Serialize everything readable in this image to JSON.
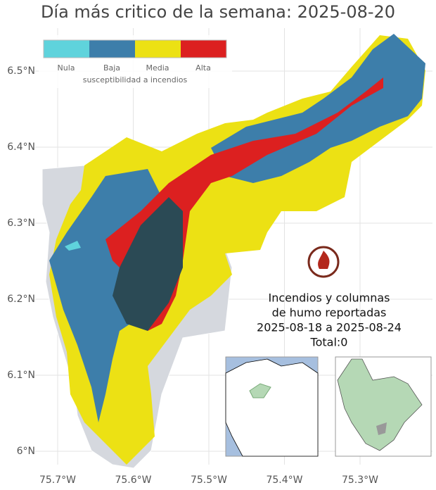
{
  "title": "Día más critico de la semana: 2025-08-20",
  "legend": {
    "title": "susceptibilidad a incendios",
    "items": [
      {
        "label": "Nula",
        "color": "#5fd3dc"
      },
      {
        "label": "Baja",
        "color": "#3d7eaa"
      },
      {
        "label": "Media",
        "color": "#ece114"
      },
      {
        "label": "Alta",
        "color": "#dc2020"
      }
    ]
  },
  "axes": {
    "x_ticks": [
      {
        "value": -75.7,
        "label": "75.7°W"
      },
      {
        "value": -75.6,
        "label": "75.6°W"
      },
      {
        "value": -75.5,
        "label": "75.5°W"
      },
      {
        "value": -75.4,
        "label": "75.4°W"
      },
      {
        "value": -75.3,
        "label": "75.3°W"
      }
    ],
    "y_ticks": [
      {
        "value": 6.5,
        "label": "6.5°N"
      },
      {
        "value": 6.4,
        "label": "6.4°N"
      },
      {
        "value": 6.3,
        "label": "6.3°N"
      },
      {
        "value": 6.2,
        "label": "6.2°N"
      },
      {
        "value": 6.1,
        "label": "6.1°N"
      },
      {
        "value": 6.0,
        "label": "6°N"
      }
    ]
  },
  "annotation": {
    "lines": [
      "Incendios y columnas",
      "de humo reportadas",
      "2025-08-18 a 2025-08-24",
      "Total:0"
    ]
  }
}
